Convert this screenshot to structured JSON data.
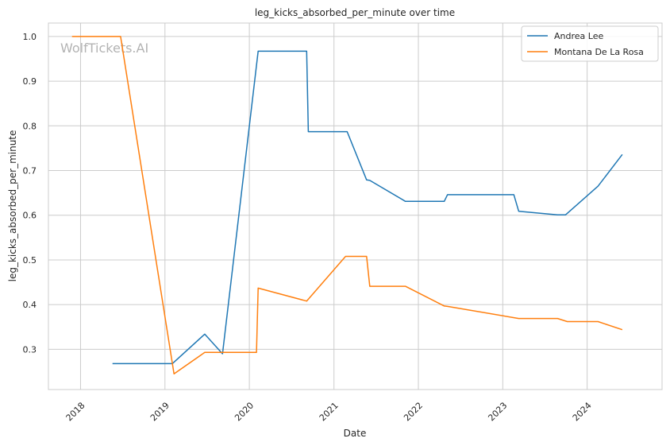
{
  "watermark": "WolfTickets.AI",
  "chart_data": {
    "type": "line",
    "title": "leg_kicks_absorbed_per_minute over time",
    "xlabel": "Date",
    "ylabel": "leg_kicks_absorbed_per_minute",
    "x_ticks": [
      "2018",
      "2019",
      "2020",
      "2021",
      "2022",
      "2023",
      "2024"
    ],
    "y_ticks": [
      "0.3",
      "0.4",
      "0.5",
      "0.6",
      "0.7",
      "0.8",
      "0.9",
      "1.0"
    ],
    "xlim": [
      "2017-08-15",
      "2024-11-20"
    ],
    "ylim": [
      0.21,
      1.03
    ],
    "grid": true,
    "legend_position": "top-right",
    "series": [
      {
        "name": "Andrea Lee",
        "color": "#1f77b4",
        "points": [
          [
            "2018-05-19",
            0.268
          ],
          [
            "2019-02-02",
            0.268
          ],
          [
            "2019-06-22",
            0.334
          ],
          [
            "2019-09-07",
            0.29
          ],
          [
            "2020-02-08",
            0.967
          ],
          [
            "2020-09-05",
            0.967
          ],
          [
            "2020-09-12",
            0.787
          ],
          [
            "2021-02-27",
            0.787
          ],
          [
            "2021-05-22",
            0.679
          ],
          [
            "2021-06-05",
            0.678
          ],
          [
            "2021-11-06",
            0.631
          ],
          [
            "2022-04-23",
            0.631
          ],
          [
            "2022-05-07",
            0.646
          ],
          [
            "2023-02-18",
            0.646
          ],
          [
            "2023-03-11",
            0.609
          ],
          [
            "2023-08-26",
            0.601
          ],
          [
            "2023-09-30",
            0.601
          ],
          [
            "2024-02-17",
            0.665
          ],
          [
            "2024-06-01",
            0.736
          ]
        ]
      },
      {
        "name": "Montana De La Rosa",
        "color": "#ff7f0e",
        "points": [
          [
            "2017-11-25",
            1.0
          ],
          [
            "2018-06-23",
            1.0
          ],
          [
            "2019-02-09",
            0.245
          ],
          [
            "2019-06-22",
            0.293
          ],
          [
            "2020-02-01",
            0.293
          ],
          [
            "2020-02-08",
            0.437
          ],
          [
            "2020-09-05",
            0.408
          ],
          [
            "2021-02-20",
            0.508
          ],
          [
            "2021-05-22",
            0.508
          ],
          [
            "2021-06-05",
            0.441
          ],
          [
            "2021-11-06",
            0.441
          ],
          [
            "2022-04-23",
            0.397
          ],
          [
            "2022-05-07",
            0.396
          ],
          [
            "2023-03-11",
            0.369
          ],
          [
            "2023-08-26",
            0.369
          ],
          [
            "2023-10-07",
            0.362
          ],
          [
            "2024-02-17",
            0.362
          ],
          [
            "2024-06-01",
            0.344
          ]
        ]
      }
    ]
  }
}
